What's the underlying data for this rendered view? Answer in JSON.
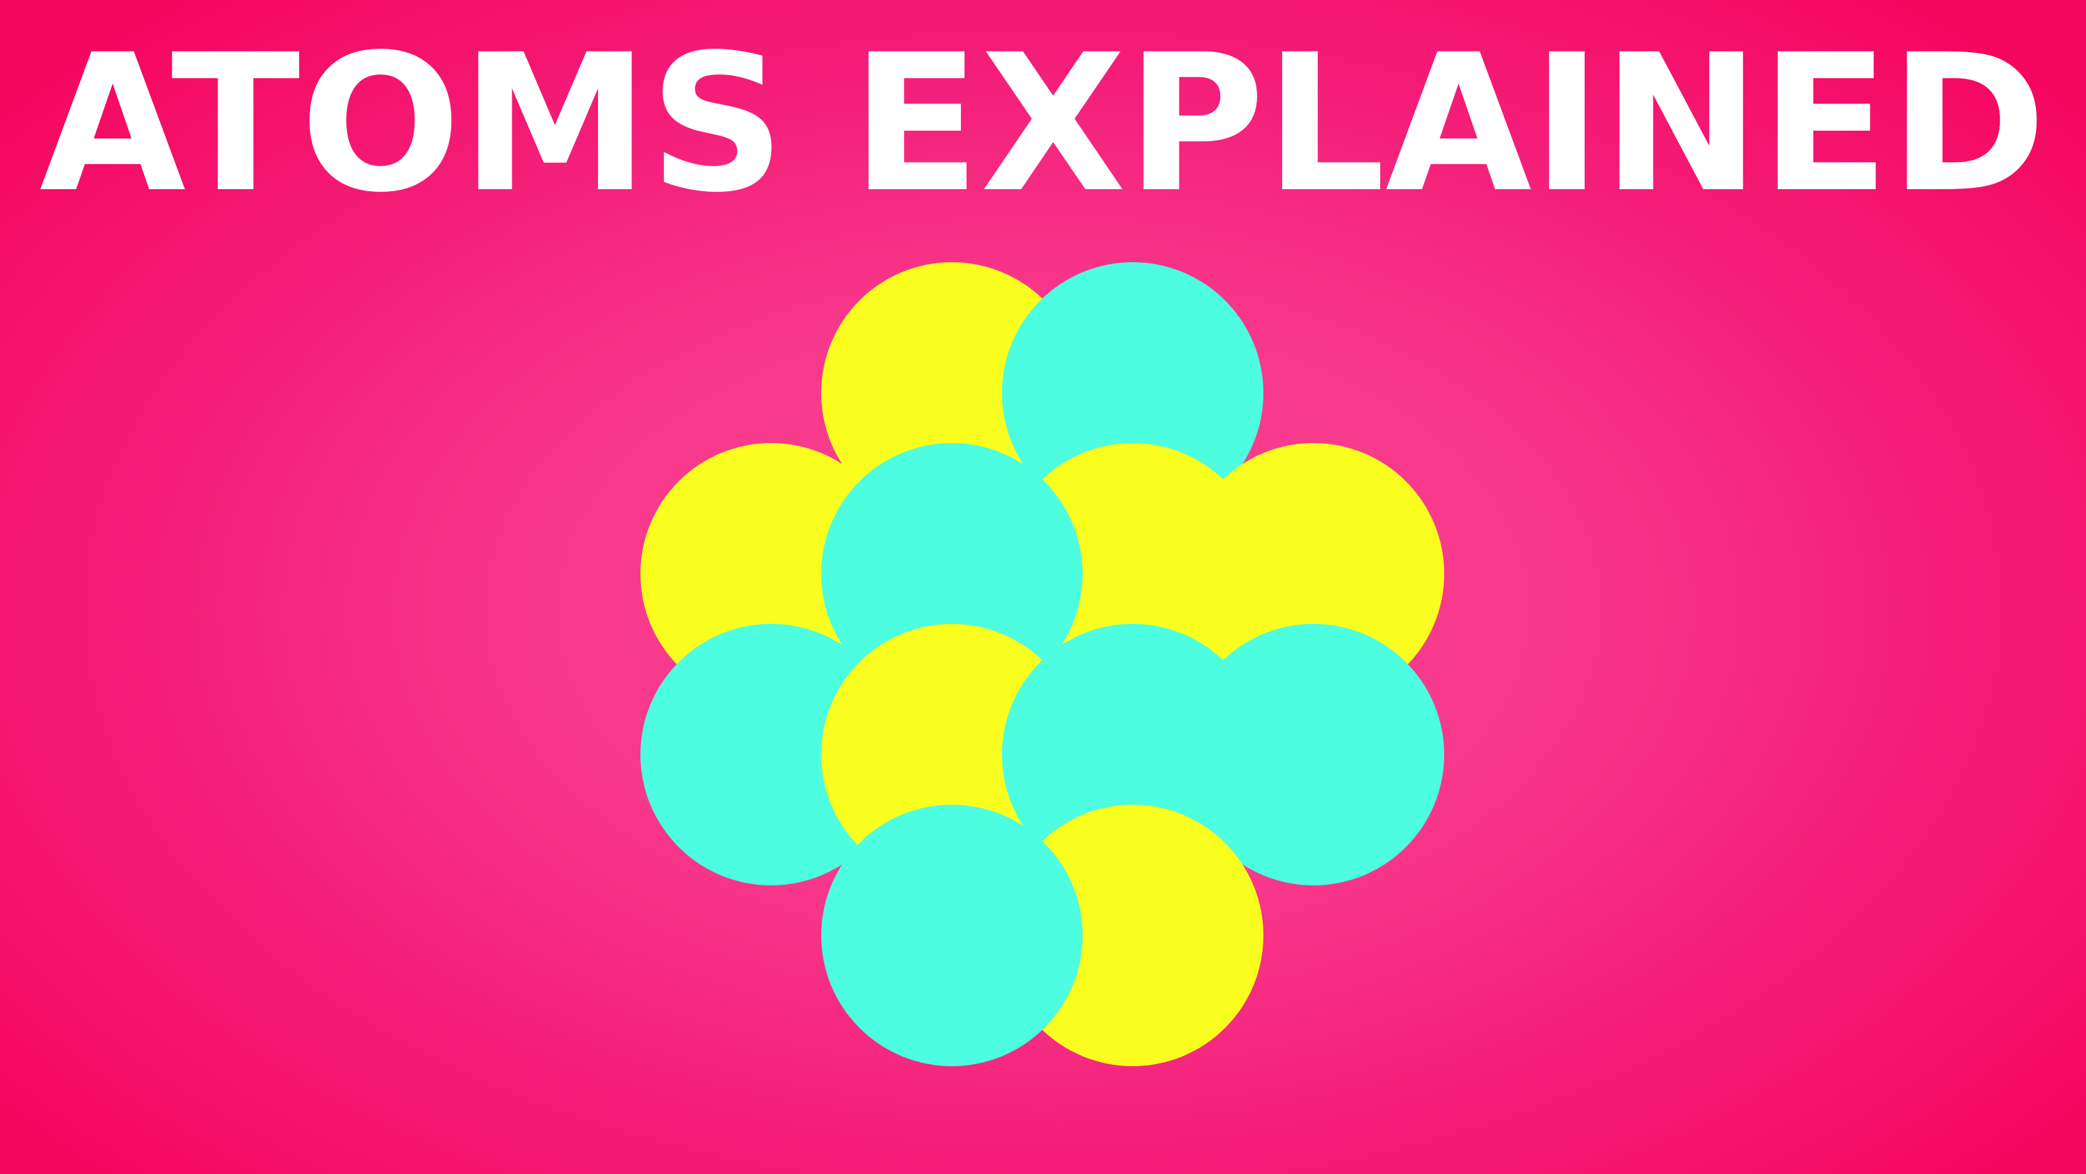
{
  "title": "ATOMS EXPLAINED",
  "colors": {
    "background": "#f50760",
    "background_glow": "#fa4595",
    "title_text": "#ffffff",
    "proton": "#fafe1e",
    "neutron": "#4cfde0"
  },
  "nucleus": {
    "particles": [
      {
        "kind": "proton",
        "color": "proton"
      },
      {
        "kind": "neutron",
        "color": "neutron"
      },
      {
        "kind": "proton",
        "color": "proton"
      },
      {
        "kind": "proton",
        "color": "proton"
      },
      {
        "kind": "proton",
        "color": "proton"
      },
      {
        "kind": "neutron",
        "color": "neutron"
      },
      {
        "kind": "neutron",
        "color": "neutron"
      },
      {
        "kind": "neutron",
        "color": "neutron"
      },
      {
        "kind": "proton",
        "color": "proton"
      },
      {
        "kind": "neutron",
        "color": "neutron"
      },
      {
        "kind": "proton",
        "color": "proton"
      },
      {
        "kind": "neutron",
        "color": "neutron"
      }
    ]
  }
}
